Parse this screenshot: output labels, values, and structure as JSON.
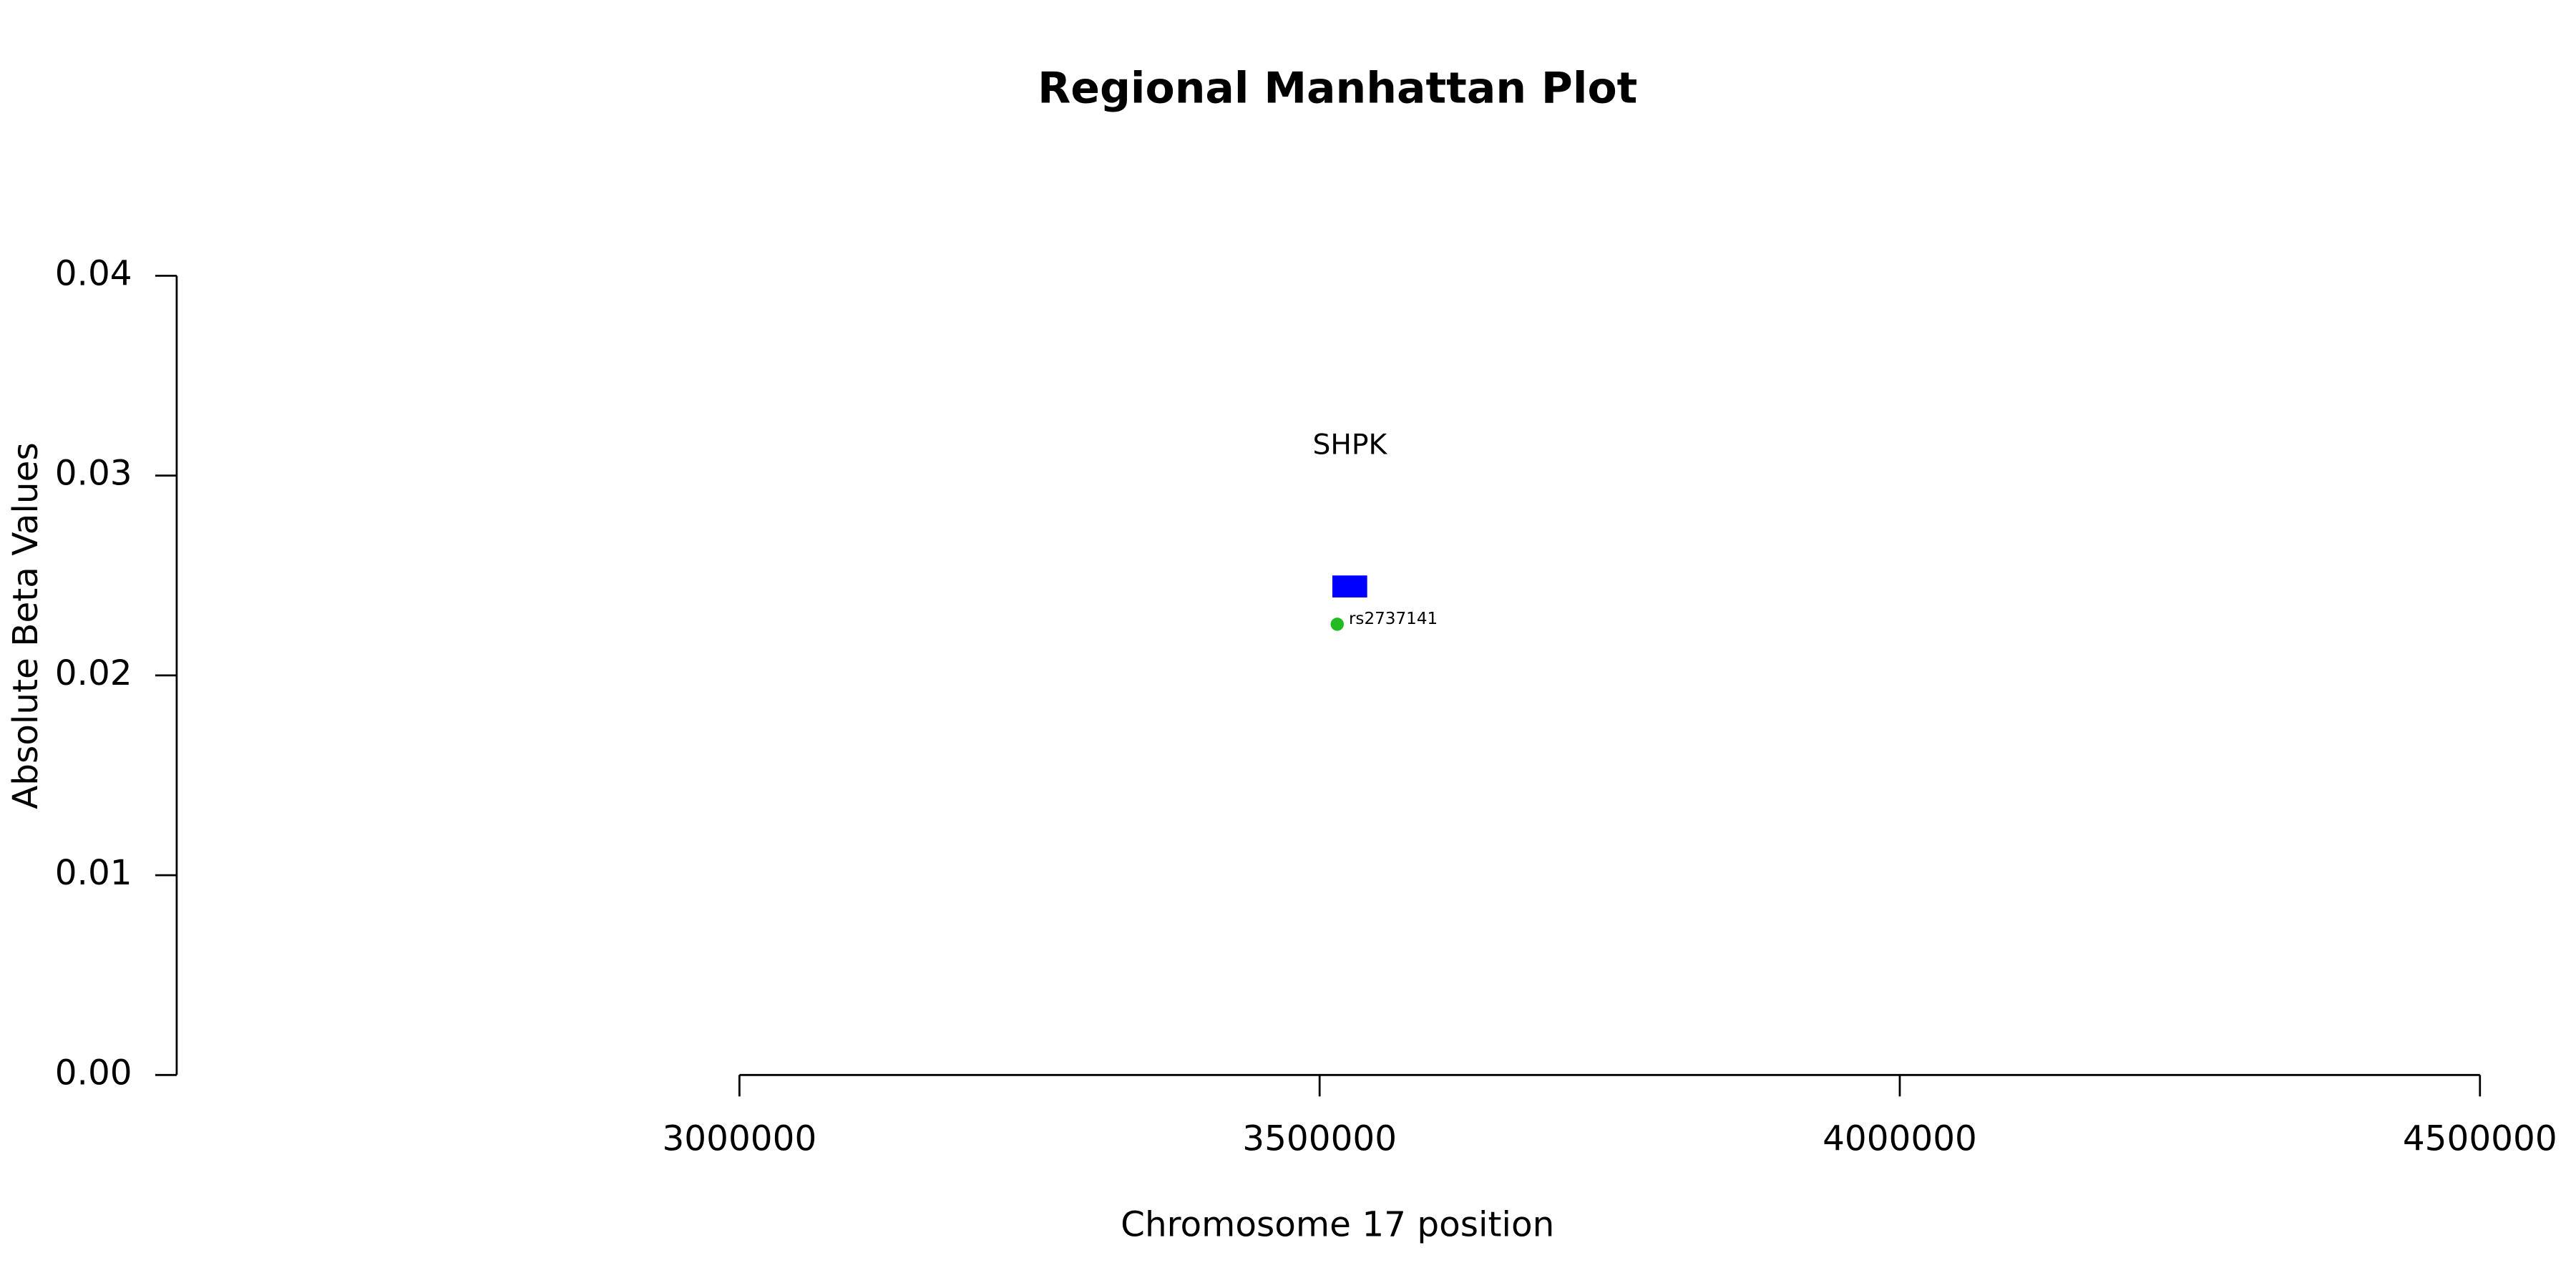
{
  "chart_data": {
    "type": "scatter",
    "title": "Regional Manhattan Plot",
    "x_label": "Chromosome 17 position",
    "y_label": "Absolute Beta Values",
    "xlim": [
      2515000,
      4525000
    ],
    "ylim": [
      0,
      0.04
    ],
    "xticks": [
      3000000,
      3500000,
      4000000,
      4500000
    ],
    "yticks": [
      {
        "value": 0,
        "label": "0.00"
      },
      0.01,
      0.02,
      0.03,
      0.04
    ],
    "series": [
      {
        "name": "rs2737141",
        "color": "#22bb22",
        "x": [
          3515180
        ],
        "values": [
          0.02256
        ]
      }
    ],
    "genes": [
      {
        "name": "SHPK",
        "start": 3511000,
        "end": 3541000,
        "ymin": 0.0239,
        "ymax": 0.025,
        "color": "#0000ff"
      }
    ]
  }
}
